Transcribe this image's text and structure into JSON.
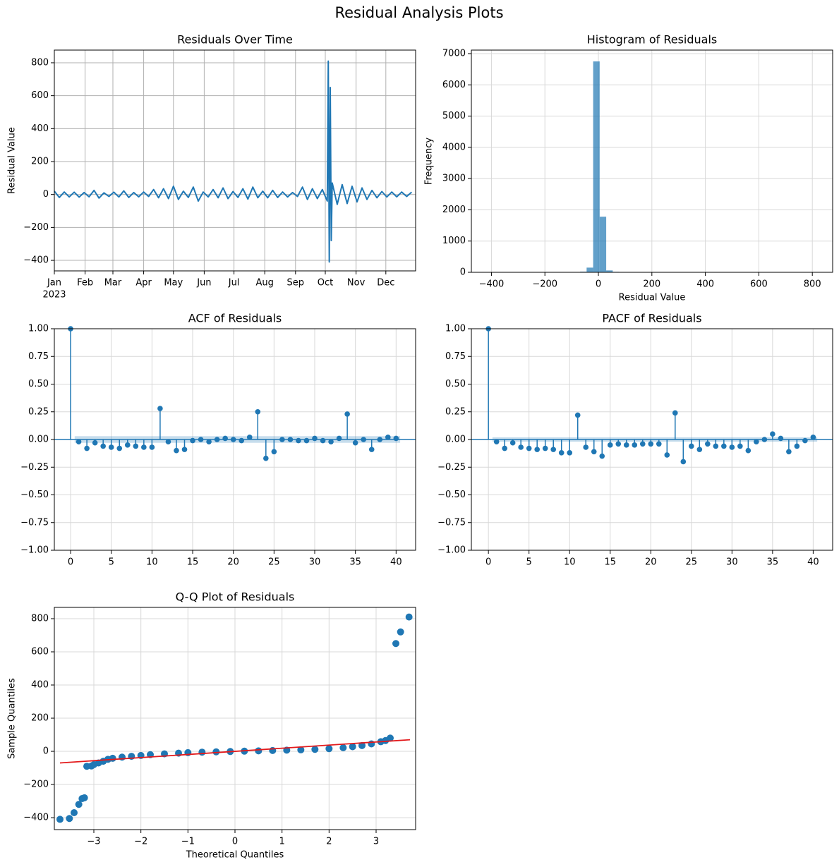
{
  "title": "Residual Analysis Plots",
  "chart_data": [
    {
      "type": "line",
      "title": "Residuals Over Time",
      "ylabel": "Residual Value",
      "color": "#1f77b4",
      "grid": true,
      "x": [
        "2023-01-01",
        "2023-01-06",
        "2023-01-11",
        "2023-01-16",
        "2023-01-21",
        "2023-01-26",
        "2023-01-31",
        "2023-02-05",
        "2023-02-10",
        "2023-02-15",
        "2023-02-20",
        "2023-02-25",
        "2023-03-02",
        "2023-03-07",
        "2023-03-12",
        "2023-03-17",
        "2023-03-22",
        "2023-03-27",
        "2023-04-01",
        "2023-04-06",
        "2023-04-11",
        "2023-04-16",
        "2023-04-21",
        "2023-04-26",
        "2023-05-01",
        "2023-05-06",
        "2023-05-11",
        "2023-05-16",
        "2023-05-21",
        "2023-05-26",
        "2023-05-31",
        "2023-06-05",
        "2023-06-10",
        "2023-06-15",
        "2023-06-20",
        "2023-06-25",
        "2023-06-30",
        "2023-07-05",
        "2023-07-10",
        "2023-07-15",
        "2023-07-20",
        "2023-07-25",
        "2023-07-30",
        "2023-08-04",
        "2023-08-09",
        "2023-08-14",
        "2023-08-19",
        "2023-08-24",
        "2023-08-29",
        "2023-09-03",
        "2023-09-08",
        "2023-09-13",
        "2023-09-18",
        "2023-09-23",
        "2023-09-28",
        "2023-10-03",
        "2023-10-04",
        "2023-10-05",
        "2023-10-06",
        "2023-10-07",
        "2023-10-08",
        "2023-10-13",
        "2023-10-18",
        "2023-10-23",
        "2023-10-28",
        "2023-11-02",
        "2023-11-07",
        "2023-11-12",
        "2023-11-17",
        "2023-11-22",
        "2023-11-27",
        "2023-12-02",
        "2023-12-07",
        "2023-12-12",
        "2023-12-17",
        "2023-12-22",
        "2023-12-27"
      ],
      "values": [
        20,
        -18,
        15,
        -15,
        14,
        -16,
        12,
        -14,
        25,
        -22,
        10,
        -12,
        14,
        -15,
        22,
        -18,
        12,
        -14,
        15,
        -12,
        30,
        -20,
        35,
        -25,
        50,
        -30,
        20,
        -18,
        45,
        -40,
        15,
        -15,
        30,
        -20,
        40,
        -25,
        18,
        -18,
        35,
        -28,
        45,
        -20,
        20,
        -20,
        25,
        -18,
        15,
        -15,
        12,
        -12,
        45,
        -30,
        35,
        -25,
        30,
        -40,
        810,
        -410,
        650,
        -280,
        70,
        -60,
        60,
        -55,
        50,
        -45,
        40,
        -30,
        25,
        -20,
        18,
        -15,
        15,
        -14,
        15,
        -12,
        14
      ],
      "xlim": [
        "2023-01-01",
        "2023-12-31"
      ],
      "xticks": [
        {
          "value": "2023-01-01",
          "label": "Jan"
        },
        {
          "value": "2023-02-01",
          "label": "Feb"
        },
        {
          "value": "2023-03-01",
          "label": "Mar"
        },
        {
          "value": "2023-04-01",
          "label": "Apr"
        },
        {
          "value": "2023-05-01",
          "label": "May"
        },
        {
          "value": "2023-06-01",
          "label": "Jun"
        },
        {
          "value": "2023-07-01",
          "label": "Jul"
        },
        {
          "value": "2023-08-01",
          "label": "Aug"
        },
        {
          "value": "2023-09-01",
          "label": "Sep"
        },
        {
          "value": "2023-10-01",
          "label": "Oct"
        },
        {
          "value": "2023-11-01",
          "label": "Nov"
        },
        {
          "value": "2023-12-01",
          "label": "Dec"
        }
      ],
      "xtick_sublabel": "2023",
      "ylim": [
        -464,
        877
      ],
      "yticks": [
        {
          "value": -400,
          "label": "−400"
        },
        {
          "value": -200,
          "label": "−200"
        },
        0,
        200,
        400,
        600,
        800
      ]
    },
    {
      "type": "histogram",
      "title": "Histogram of Residuals",
      "xlabel": "Residual Value",
      "ylabel": "Frequency",
      "color": "#1f77b4",
      "grid": true,
      "bins": [
        -410,
        -385.6,
        -361.2,
        -336.8,
        -312.4,
        -288,
        -263.6,
        -239.2,
        -214.8,
        -190.4,
        -166,
        -141.6,
        -117.2,
        -92.8,
        -68.4,
        -44,
        -19.6,
        4.8,
        29.2,
        53.6,
        78,
        102.4,
        126.8,
        151.2,
        175.6,
        200,
        224.4,
        248.8,
        273.2,
        297.6,
        322,
        346.4,
        370.8,
        395.2,
        419.6,
        444,
        468.4,
        492.8,
        517.2,
        541.6,
        566,
        590.4,
        614.8,
        639.2,
        663.6,
        688,
        712.4,
        736.8,
        761.2,
        785.6,
        810
      ],
      "counts": [
        2,
        1,
        0,
        1,
        0,
        2,
        0,
        0,
        0,
        0,
        0,
        0,
        0,
        3,
        20,
        150,
        6750,
        1780,
        60,
        15,
        4,
        0,
        0,
        0,
        0,
        0,
        0,
        0,
        0,
        0,
        0,
        0,
        0,
        0,
        0,
        0,
        0,
        0,
        0,
        0,
        0,
        0,
        0,
        1,
        0,
        0,
        1,
        0,
        0,
        1
      ],
      "xlim": [
        -475,
        876
      ],
      "xticks": [
        {
          "value": -400,
          "label": "−400"
        },
        {
          "value": -200,
          "label": "−200"
        },
        0,
        200,
        400,
        600,
        800
      ],
      "ylim": [
        0,
        7113
      ],
      "yticks": [
        0,
        1000,
        2000,
        3000,
        4000,
        5000,
        6000,
        7000
      ]
    },
    {
      "type": "stem",
      "title": "ACF of Residuals",
      "color": "#1f77b4",
      "grid": true,
      "confidence_band": 0.03,
      "x": [
        0,
        1,
        2,
        3,
        4,
        5,
        6,
        7,
        8,
        9,
        10,
        11,
        12,
        13,
        14,
        15,
        16,
        17,
        18,
        19,
        20,
        21,
        22,
        23,
        24,
        25,
        26,
        27,
        28,
        29,
        30,
        31,
        32,
        33,
        34,
        35,
        36,
        37,
        38,
        39,
        40
      ],
      "values": [
        1,
        -0.02,
        -0.08,
        -0.03,
        -0.06,
        -0.07,
        -0.08,
        -0.05,
        -0.06,
        -0.07,
        -0.07,
        0.28,
        -0.02,
        -0.1,
        -0.09,
        -0.01,
        0.0,
        -0.02,
        0.0,
        0.01,
        0.0,
        -0.01,
        0.02,
        0.25,
        -0.17,
        -0.11,
        0.0,
        0.0,
        -0.01,
        -0.01,
        0.01,
        -0.01,
        -0.02,
        0.01,
        0.23,
        -0.03,
        0.0,
        -0.09,
        0.0,
        0.02,
        0.01
      ],
      "xlim": [
        -2,
        42.4
      ],
      "xticks": [
        0,
        5,
        10,
        15,
        20,
        25,
        30,
        35,
        40
      ],
      "ylim": [
        -1,
        1
      ],
      "yticks": [
        {
          "value": -1,
          "label": "−1.00"
        },
        {
          "value": -0.75,
          "label": "−0.75"
        },
        {
          "value": -0.5,
          "label": "−0.50"
        },
        {
          "value": -0.25,
          "label": "−0.25"
        },
        {
          "value": 0,
          "label": "0.00"
        },
        {
          "value": 0.25,
          "label": "0.25"
        },
        {
          "value": 0.5,
          "label": "0.50"
        },
        {
          "value": 0.75,
          "label": "0.75"
        },
        {
          "value": 1,
          "label": "1.00"
        }
      ]
    },
    {
      "type": "stem",
      "title": "PACF of Residuals",
      "color": "#1f77b4",
      "grid": true,
      "confidence_band": 0.02,
      "x": [
        0,
        1,
        2,
        3,
        4,
        5,
        6,
        7,
        8,
        9,
        10,
        11,
        12,
        13,
        14,
        15,
        16,
        17,
        18,
        19,
        20,
        21,
        22,
        23,
        24,
        25,
        26,
        27,
        28,
        29,
        30,
        31,
        32,
        33,
        34,
        35,
        36,
        37,
        38,
        39,
        40
      ],
      "values": [
        1,
        -0.02,
        -0.08,
        -0.03,
        -0.07,
        -0.08,
        -0.09,
        -0.08,
        -0.09,
        -0.12,
        -0.12,
        0.22,
        -0.07,
        -0.11,
        -0.15,
        -0.05,
        -0.04,
        -0.05,
        -0.05,
        -0.04,
        -0.04,
        -0.04,
        -0.14,
        0.24,
        -0.2,
        -0.06,
        -0.09,
        -0.04,
        -0.06,
        -0.06,
        -0.07,
        -0.06,
        -0.1,
        -0.02,
        0.0,
        0.05,
        0.01,
        -0.11,
        -0.06,
        -0.01,
        0.02
      ],
      "xlim": [
        -2.1,
        42.4
      ],
      "xticks": [
        0,
        5,
        10,
        15,
        20,
        25,
        30,
        35,
        40
      ],
      "ylim": [
        -1,
        1
      ],
      "yticks": [
        {
          "value": -1,
          "label": "−1.00"
        },
        {
          "value": -0.75,
          "label": "−0.75"
        },
        {
          "value": -0.5,
          "label": "−0.50"
        },
        {
          "value": -0.25,
          "label": "−0.25"
        },
        {
          "value": 0,
          "label": "0.00"
        },
        {
          "value": 0.25,
          "label": "0.25"
        },
        {
          "value": 0.5,
          "label": "0.50"
        },
        {
          "value": 0.75,
          "label": "0.75"
        },
        {
          "value": 1,
          "label": "1.00"
        }
      ]
    },
    {
      "type": "scatter",
      "title": "Q-Q Plot of Residuals",
      "xlabel": "Theoretical Quantiles",
      "ylabel": "Sample Quantiles",
      "color": "#1f77b4",
      "grid": true,
      "x": [
        -3.72,
        -3.52,
        -3.42,
        -3.32,
        -3.25,
        -3.2,
        -3.15,
        -3.05,
        -3.0,
        -2.9,
        -2.8,
        -2.7,
        -2.6,
        -2.4,
        -2.2,
        -2.0,
        -1.8,
        -1.5,
        -1.2,
        -1.0,
        -0.7,
        -0.4,
        -0.1,
        0.2,
        0.5,
        0.8,
        1.1,
        1.4,
        1.7,
        2.0,
        2.3,
        2.5,
        2.7,
        2.9,
        3.1,
        3.2,
        3.3,
        3.42,
        3.52,
        3.7
      ],
      "y": [
        -410,
        -405,
        -370,
        -320,
        -285,
        -280,
        -90,
        -88,
        -80,
        -70,
        -60,
        -48,
        -42,
        -35,
        -30,
        -25,
        -20,
        -15,
        -11,
        -8,
        -5,
        -3,
        -1,
        1,
        3,
        5,
        7,
        9,
        12,
        16,
        22,
        28,
        35,
        45,
        58,
        65,
        80,
        650,
        720,
        810
      ],
      "fit_line": {
        "x": [
          -3.72,
          3.72
        ],
        "y": [
          -70,
          70
        ],
        "color": "#e31a1c"
      },
      "xlim": [
        -3.84,
        3.84
      ],
      "xticks": [
        {
          "value": -3,
          "label": "−3"
        },
        {
          "value": -2,
          "label": "−2"
        },
        {
          "value": -1,
          "label": "−1"
        },
        0,
        1,
        2,
        3
      ],
      "ylim": [
        -472,
        868
      ],
      "yticks": [
        {
          "value": -400,
          "label": "−400"
        },
        {
          "value": -200,
          "label": "−200"
        },
        0,
        200,
        400,
        600,
        800
      ]
    }
  ]
}
